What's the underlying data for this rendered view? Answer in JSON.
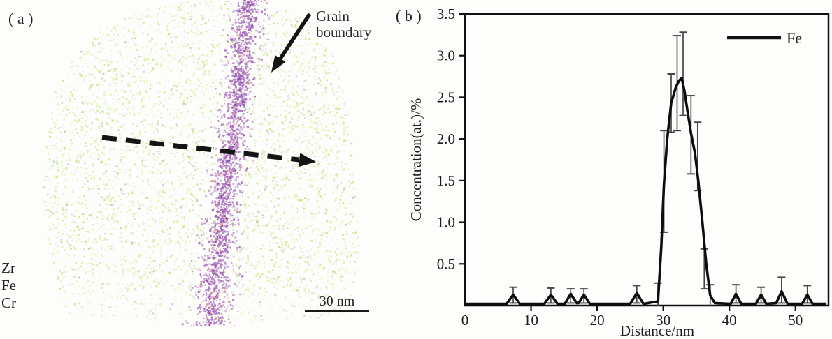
{
  "panel_a": {
    "label": "( a )",
    "grain_boundary_label_lines": [
      "Grain",
      "boundary"
    ],
    "element_labels": [
      "Zr",
      "Fe",
      "Cr"
    ],
    "scale_bar_label": "30 nm",
    "colors": {
      "matrix_green": "#c2e07c",
      "matrix_green_light": "#d8eda6",
      "matrix_speck_gray": "#9aa79a",
      "boundary_purple": "#9b59b6",
      "boundary_purple_dark": "#8e44ad",
      "solute_orange": "#e0985f",
      "annotation_black": "#141414"
    }
  },
  "panel_b": {
    "label": "( b )"
  },
  "chart_data": {
    "type": "line",
    "title": "",
    "xlabel": "Distance/nm",
    "ylabel": "Concentration(at.)/%",
    "xlim": [
      0,
      55
    ],
    "ylim": [
      0,
      3.5
    ],
    "xticks": [
      0,
      10,
      20,
      30,
      40,
      50
    ],
    "yticks": [
      0.5,
      1.0,
      1.5,
      2.0,
      2.5,
      3.0,
      3.5
    ],
    "ytick_labels": [
      "0.5",
      "1.0",
      "1.5",
      "2.0",
      "2.5",
      "3.0",
      "3.5"
    ],
    "grid": false,
    "legend": {
      "position": "top-right",
      "entries": [
        {
          "label": "Fe",
          "color": "#111111"
        }
      ]
    },
    "series": [
      {
        "name": "Fe",
        "color": "#0d0d0d",
        "line_width": 3.6,
        "error_bar_color": "#454545",
        "points": [
          [
            0.3,
            0.02
          ],
          [
            6.3,
            0.02
          ],
          [
            7.3,
            0.13
          ],
          [
            8.3,
            0.02
          ],
          [
            12.0,
            0.02
          ],
          [
            13.0,
            0.13
          ],
          [
            14.0,
            0.02
          ],
          [
            15.1,
            0.02
          ],
          [
            16.0,
            0.14
          ],
          [
            16.9,
            0.03
          ],
          [
            17.2,
            0.03
          ],
          [
            18.0,
            0.13
          ],
          [
            18.9,
            0.02
          ],
          [
            25.0,
            0.02
          ],
          [
            26.0,
            0.15
          ],
          [
            27.0,
            0.02
          ],
          [
            29.2,
            0.05
          ],
          [
            29.7,
            0.7
          ],
          [
            30.1,
            1.45
          ],
          [
            30.6,
            2.0
          ],
          [
            31.2,
            2.43
          ],
          [
            31.9,
            2.62
          ],
          [
            32.4,
            2.7
          ],
          [
            32.8,
            2.73
          ],
          [
            33.2,
            2.58
          ],
          [
            33.7,
            2.32
          ],
          [
            34.2,
            2.07
          ],
          [
            34.8,
            1.83
          ],
          [
            35.3,
            1.5
          ],
          [
            35.9,
            1.02
          ],
          [
            36.5,
            0.5
          ],
          [
            37.1,
            0.12
          ],
          [
            37.8,
            0.03
          ],
          [
            40.2,
            0.02
          ],
          [
            41.0,
            0.14
          ],
          [
            41.8,
            0.02
          ],
          [
            44.0,
            0.02
          ],
          [
            44.8,
            0.13
          ],
          [
            45.6,
            0.02
          ],
          [
            47.1,
            0.03
          ],
          [
            47.9,
            0.17
          ],
          [
            48.8,
            0.02
          ],
          [
            51.0,
            0.02
          ],
          [
            51.8,
            0.13
          ],
          [
            52.6,
            0.02
          ],
          [
            54.5,
            0.02
          ]
        ],
        "error_bars": [
          [
            7.3,
            0.03,
            0.22
          ],
          [
            13.0,
            0.03,
            0.21
          ],
          [
            16.0,
            0.03,
            0.2
          ],
          [
            18.0,
            0.03,
            0.2
          ],
          [
            26.0,
            0.03,
            0.24
          ],
          [
            29.2,
            0.0,
            0.27
          ],
          [
            30.1,
            0.88,
            2.1
          ],
          [
            31.2,
            2.08,
            2.78
          ],
          [
            32.1,
            2.1,
            3.24
          ],
          [
            33.0,
            2.28,
            3.28
          ],
          [
            34.2,
            1.58,
            2.52
          ],
          [
            35.2,
            1.38,
            2.2
          ],
          [
            36.2,
            0.2,
            0.68
          ],
          [
            37.1,
            0.0,
            0.25
          ],
          [
            41.0,
            0.03,
            0.25
          ],
          [
            44.8,
            0.03,
            0.22
          ],
          [
            47.9,
            0.03,
            0.34
          ],
          [
            51.8,
            0.03,
            0.24
          ]
        ]
      }
    ]
  }
}
